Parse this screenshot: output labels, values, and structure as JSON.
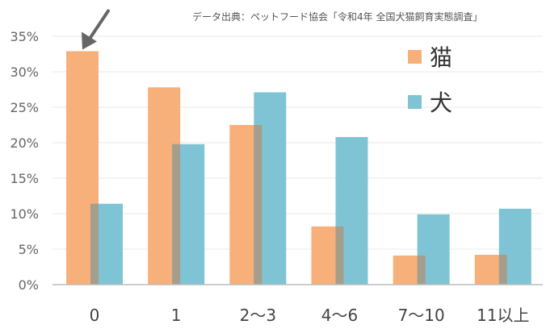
{
  "source_note": "データ出典：ペットフード協会「令和4年 全国犬猫飼育実態調査」",
  "colors": {
    "cat": "#F8B07A",
    "dog": "#7FC4D4",
    "overlap": "#A59E8C",
    "axis": "#BBBBBB",
    "grid": "#E8E8E8",
    "tick_text": "#666666",
    "category_text": "#444444",
    "arrow": "#666666"
  },
  "legend": {
    "cat_label": "猫",
    "dog_label": "犬"
  },
  "chart_data": {
    "type": "bar",
    "categories": [
      "0",
      "1",
      "2〜3",
      "4〜6",
      "7〜10",
      "11以上"
    ],
    "series": [
      {
        "name": "猫",
        "values": [
          32.9,
          27.8,
          22.5,
          8.2,
          4.1,
          4.2
        ]
      },
      {
        "name": "犬",
        "values": [
          11.4,
          19.8,
          27.1,
          20.8,
          9.9,
          10.7
        ]
      }
    ],
    "y_ticks": [
      {
        "value": 0,
        "label": "0%"
      },
      {
        "value": 5,
        "label": "5%"
      },
      {
        "value": 10,
        "label": "10%"
      },
      {
        "value": 15,
        "label": "15%"
      },
      {
        "value": 20,
        "label": "20%"
      },
      {
        "value": 25,
        "label": "25%"
      },
      {
        "value": 30,
        "label": "30%"
      },
      {
        "value": 35,
        "label": "35%"
      }
    ],
    "ylim": [
      0,
      35
    ],
    "grid": true,
    "legend_position": "top-right",
    "annotation": {
      "type": "arrow",
      "target_category": "0",
      "target_series": "猫"
    }
  }
}
